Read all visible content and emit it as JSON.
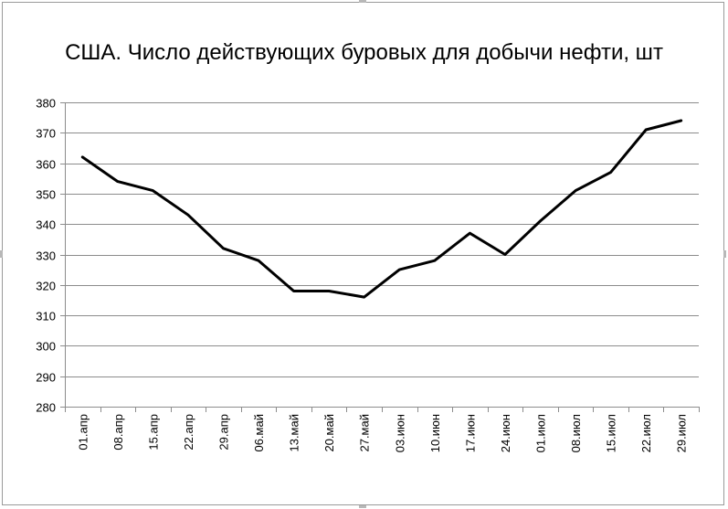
{
  "chart_data": {
    "type": "line",
    "title": "США. Число действующих буровых для добычи нефти, шт",
    "categories": [
      "01.апр",
      "08.апр",
      "15.апр",
      "22.апр",
      "29.апр",
      "06.май",
      "13.май",
      "20.май",
      "27.май",
      "03.июн",
      "10.июн",
      "17.июн",
      "24.июн",
      "01.июл",
      "08.июл",
      "15.июл",
      "22.июл",
      "29.июл"
    ],
    "series": [
      {
        "values": [
          362,
          354,
          351,
          343,
          332,
          328,
          318,
          318,
          316,
          325,
          328,
          337,
          330,
          341,
          351,
          357,
          371,
          374
        ]
      }
    ],
    "ylim": [
      280,
      380
    ],
    "yticks": [
      280,
      290,
      300,
      310,
      320,
      330,
      340,
      350,
      360,
      370,
      380
    ],
    "grid": true,
    "legend": "none",
    "line_color": "#000000",
    "grid_color": "#8c8c8c"
  }
}
